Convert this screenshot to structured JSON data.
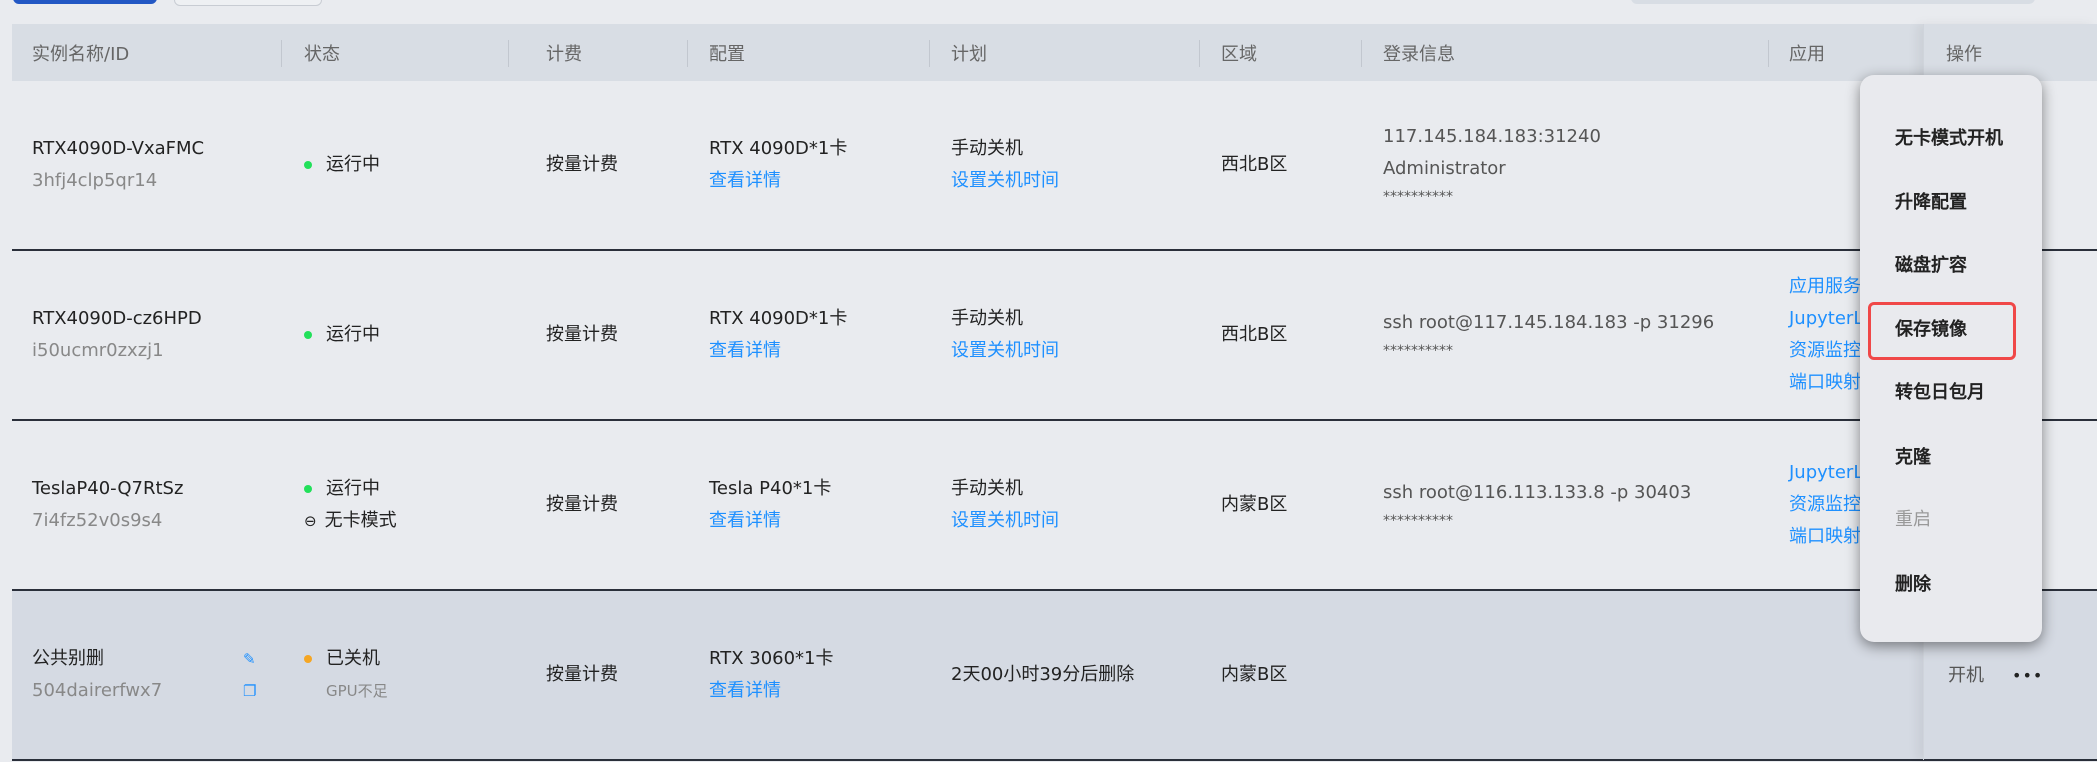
{
  "header": {
    "columns": [
      "实例名称/ID",
      "状态",
      "计费",
      "配置",
      "计划",
      "区域",
      "登录信息",
      "应用",
      "操作"
    ]
  },
  "rows": [
    {
      "name": "RTX4090D-VxaFMC",
      "id": "3hfj4clp5qr14",
      "status": "运行中",
      "status_color": "#22e05a",
      "status_sub": "",
      "billing": "按量计费",
      "config": "RTX 4090D*1卡",
      "config_link": "查看详情",
      "plan": "手动关机",
      "plan_link": "设置关机时间",
      "region": "西北B区",
      "login": [
        "117.145.184.183:31240",
        "Administrator",
        "**********"
      ],
      "apps": []
    },
    {
      "name": "RTX4090D-cz6HPD",
      "id": "i50ucmr0zxzj1",
      "status": "运行中",
      "status_color": "#22e05a",
      "status_sub": "",
      "billing": "按量计费",
      "config": "RTX 4090D*1卡",
      "config_link": "查看详情",
      "plan": "手动关机",
      "plan_link": "设置关机时间",
      "region": "西北B区",
      "login": [
        "ssh root@117.145.184.183 -p 31296",
        "**********"
      ],
      "apps": [
        "应用服务",
        "JupyterLab",
        "资源监控",
        "端口映射"
      ]
    },
    {
      "name": "TeslaP40-Q7RtSz",
      "id": "7i4fz52v0s9s4",
      "status": "运行中",
      "status_color": "#22e05a",
      "status_sub": "无卡模式",
      "billing": "按量计费",
      "config": "Tesla P40*1卡",
      "config_link": "查看详情",
      "plan": "手动关机",
      "plan_link": "设置关机时间",
      "region": "内蒙B区",
      "login": [
        "ssh root@116.113.133.8 -p 30403",
        "**********"
      ],
      "apps": [
        "JupyterLab",
        "资源监控",
        "端口映射"
      ]
    },
    {
      "name": "公共别删",
      "id": "504dairerfwx7",
      "status": "已关机",
      "status_color": "#f5a623",
      "status_sub": "GPU不足",
      "billing": "按量计费",
      "config": "RTX 3060*1卡",
      "config_link": "查看详情",
      "plan": "2天00小时39分后删除",
      "plan_link": "",
      "region": "内蒙B区",
      "login": [],
      "apps": [],
      "action": "开机",
      "more": "•••"
    }
  ],
  "menu": {
    "items": [
      "无卡模式开机",
      "升降配置",
      "磁盘扩容",
      "保存镜像",
      "转包日包月",
      "克隆",
      "重启",
      "删除"
    ],
    "highlighted": "保存镜像",
    "disabled": [
      "重启"
    ]
  }
}
